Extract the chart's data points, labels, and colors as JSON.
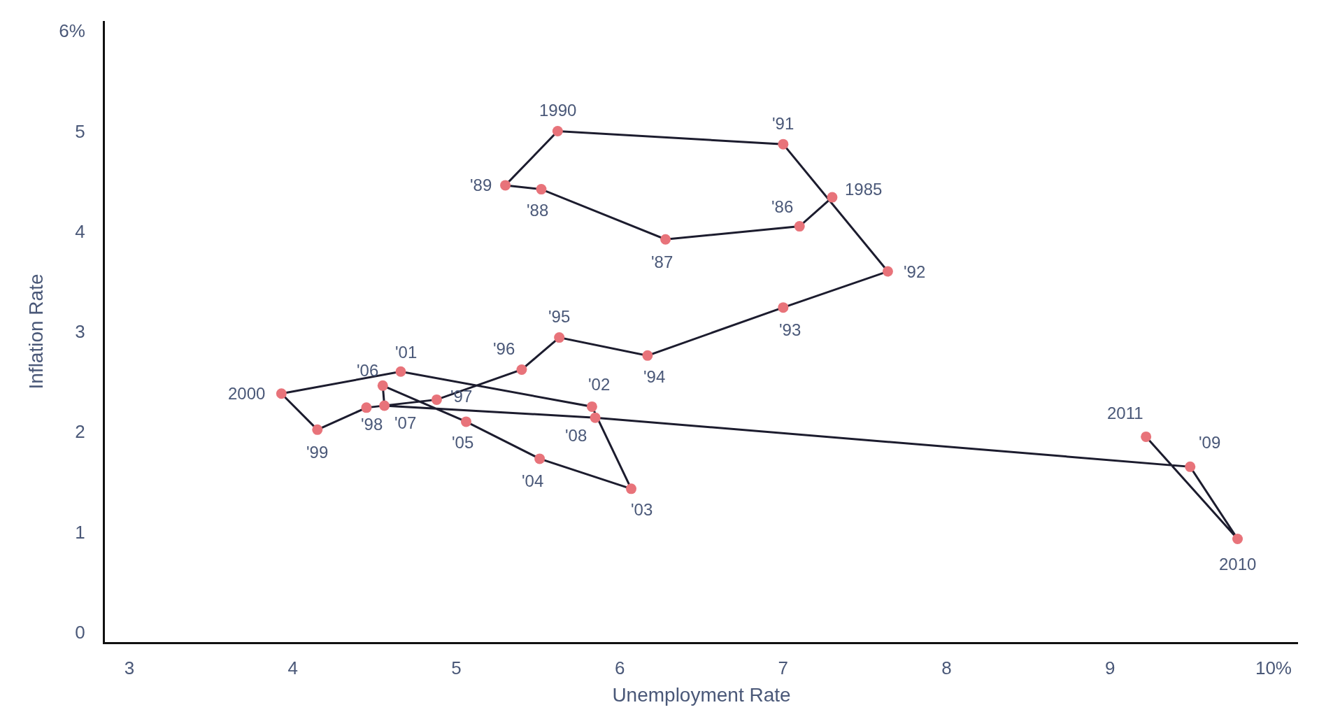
{
  "chart_data": {
    "type": "line",
    "xlabel": "Unemployment Rate",
    "ylabel": "Inflation Rate",
    "x": [
      7.3,
      7.1,
      6.28,
      5.52,
      5.3,
      5.62,
      7.0,
      7.64,
      7.0,
      6.17,
      5.63,
      5.4,
      4.88,
      4.45,
      4.15,
      3.93,
      4.66,
      5.83,
      6.07,
      5.51,
      5.06,
      4.55,
      4.56,
      5.85,
      9.49,
      9.78,
      9.22
    ],
    "series": [
      {
        "color": "#1c1c2e",
        "colors": [
          "#e8737a",
          "#e8737a",
          "#e8737a",
          "#e8737a",
          "#e8737a",
          "#e8737a",
          "#e8737a",
          "#e8737a",
          "#e8737a",
          "#e8737a",
          "#e8737a",
          "#e8737a",
          "#e8737a",
          "#e8737a",
          "#e8737a",
          "#e8737a",
          "#e8737a",
          "#e8737a",
          "#e8737a",
          "#e8737a",
          "#e8737a",
          "#e8737a",
          "#e8737a",
          "#e8737a",
          "#e8737a",
          "#e8737a",
          "#e8737a"
        ],
        "values": [
          4.34,
          4.05,
          3.92,
          4.42,
          4.46,
          5.0,
          4.87,
          3.6,
          3.24,
          2.76,
          2.94,
          2.62,
          2.32,
          2.24,
          2.02,
          2.38,
          2.6,
          2.25,
          1.43,
          1.73,
          2.1,
          2.46,
          2.26,
          2.14,
          1.65,
          0.93,
          1.95
        ]
      }
    ],
    "marker": "circle",
    "annotations": [
      {
        "text": "1985",
        "x": 7.3,
        "y": 4.34
      },
      {
        "text": "'86",
        "x": 7.1,
        "y": 4.05
      },
      {
        "text": "'87",
        "x": 6.28,
        "y": 3.92
      },
      {
        "text": "'88",
        "x": 5.52,
        "y": 4.42
      },
      {
        "text": "'89",
        "x": 5.3,
        "y": 4.46
      },
      {
        "text": "1990",
        "x": 5.62,
        "y": 5.0
      },
      {
        "text": "'91",
        "x": 7.0,
        "y": 4.87
      },
      {
        "text": "'92",
        "x": 7.64,
        "y": 3.6
      },
      {
        "text": "'93",
        "x": 7.0,
        "y": 3.24
      },
      {
        "text": "'94",
        "x": 6.17,
        "y": 2.76
      },
      {
        "text": "'95",
        "x": 5.63,
        "y": 2.94
      },
      {
        "text": "'96",
        "x": 5.4,
        "y": 2.62
      },
      {
        "text": "'97",
        "x": 4.88,
        "y": 2.32
      },
      {
        "text": "'98",
        "x": 4.45,
        "y": 2.24
      },
      {
        "text": "'99",
        "x": 4.15,
        "y": 2.02
      },
      {
        "text": "2000",
        "x": 3.93,
        "y": 2.38
      },
      {
        "text": "'01",
        "x": 4.66,
        "y": 2.6
      },
      {
        "text": "'02",
        "x": 5.83,
        "y": 2.25
      },
      {
        "text": "'03",
        "x": 6.07,
        "y": 1.43
      },
      {
        "text": "'04",
        "x": 5.51,
        "y": 1.73
      },
      {
        "text": "'05",
        "x": 5.06,
        "y": 2.1
      },
      {
        "text": "'06",
        "x": 4.55,
        "y": 2.46
      },
      {
        "text": "'07",
        "x": 4.56,
        "y": 2.26
      },
      {
        "text": "'08",
        "x": 5.85,
        "y": 2.14
      },
      {
        "text": "'09",
        "x": 9.49,
        "y": 1.65
      },
      {
        "text": "2010",
        "x": 9.78,
        "y": 0.93
      },
      {
        "text": "2011",
        "x": 9.22,
        "y": 1.95
      }
    ],
    "xlim": [
      2.85,
      10.15
    ],
    "ylim": [
      -0.1,
      6.1
    ],
    "xticks": [
      3,
      4,
      5,
      6,
      7,
      8,
      9,
      {
        "value": 10,
        "label": "10%"
      }
    ],
    "yticks": [
      0,
      1,
      2,
      3,
      4,
      5,
      {
        "value": 6,
        "label": "6%"
      }
    ]
  }
}
